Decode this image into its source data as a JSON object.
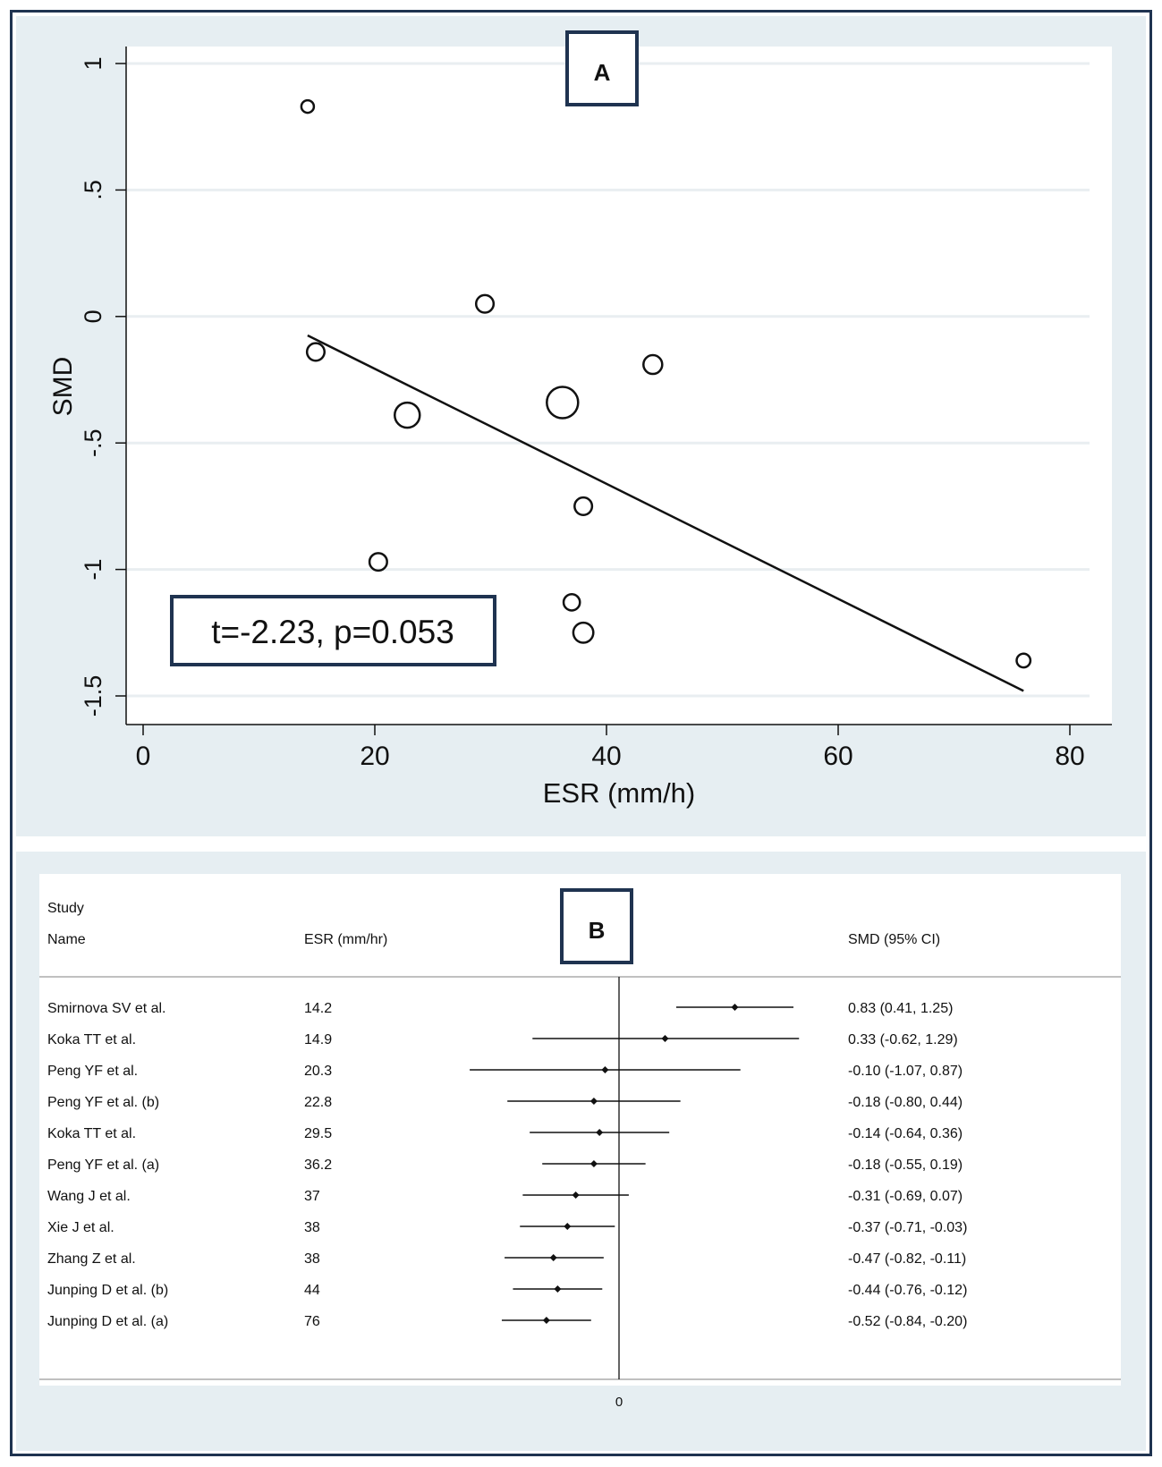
{
  "chart_data": [
    {
      "type": "scatter",
      "panel_label": "A",
      "xlabel": "ESR (mm/h)",
      "ylabel": "SMD",
      "xlim": [
        0,
        80
      ],
      "ylim": [
        -1.5,
        1
      ],
      "xticks": [
        0,
        20,
        40,
        60,
        80
      ],
      "xtick_labels": [
        "0",
        "20",
        "40",
        "60",
        "80"
      ],
      "yticks": [
        1,
        0.5,
        0,
        -0.5,
        -1,
        -1.5
      ],
      "ytick_labels": [
        "1",
        ".5",
        "0",
        "-.5",
        "-1",
        "-1.5"
      ],
      "grid": true,
      "points": [
        {
          "x": 14.2,
          "y": 0.83,
          "weight": 1.0
        },
        {
          "x": 14.9,
          "y": -0.14,
          "weight": 1.4
        },
        {
          "x": 20.3,
          "y": -0.97,
          "weight": 1.4
        },
        {
          "x": 22.8,
          "y": -0.39,
          "weight": 2.0
        },
        {
          "x": 29.5,
          "y": 0.05,
          "weight": 1.4
        },
        {
          "x": 36.2,
          "y": -0.34,
          "weight": 2.5
        },
        {
          "x": 37,
          "y": -1.13,
          "weight": 1.3
        },
        {
          "x": 38,
          "y": -0.75,
          "weight": 1.4
        },
        {
          "x": 38,
          "y": -1.25,
          "weight": 1.6
        },
        {
          "x": 44,
          "y": -0.19,
          "weight": 1.5
        },
        {
          "x": 76,
          "y": -1.36,
          "weight": 1.1
        }
      ],
      "fit_line": {
        "x": [
          14.2,
          76
        ],
        "y": [
          -0.075,
          -1.48
        ]
      },
      "annotation": "t=-2.23, p=0.053"
    },
    {
      "type": "table",
      "subtype": "forest",
      "panel_label": "B",
      "headers": {
        "study_line1": "Study",
        "study_line2": "Name",
        "esr": "ESR (mm/hr)",
        "smd": "SMD (95% CI)"
      },
      "zero_label": "0",
      "xlim": [
        -1.28,
        1.36
      ],
      "rows": [
        {
          "name": "Smirnova SV et al.",
          "esr": "14.2",
          "smd_text": "0.83 (0.41, 1.25)",
          "est": 0.83,
          "lo": 0.41,
          "hi": 1.25
        },
        {
          "name": "Koka TT et al.",
          "esr": "14.9",
          "smd_text": "0.33 (-0.62, 1.29)",
          "est": 0.33,
          "lo": -0.62,
          "hi": 1.29
        },
        {
          "name": "Peng YF et al.",
          "esr": "20.3",
          "smd_text": "-0.10 (-1.07, 0.87)",
          "est": -0.1,
          "lo": -1.07,
          "hi": 0.87
        },
        {
          "name": "Peng YF et al. (b)",
          "esr": "22.8",
          "smd_text": "-0.18 (-0.80, 0.44)",
          "est": -0.18,
          "lo": -0.8,
          "hi": 0.44
        },
        {
          "name": "Koka TT et al.",
          "esr": "29.5",
          "smd_text": "-0.14 (-0.64, 0.36)",
          "est": -0.14,
          "lo": -0.64,
          "hi": 0.36
        },
        {
          "name": "Peng YF et al. (a)",
          "esr": "36.2",
          "smd_text": "-0.18 (-0.55, 0.19)",
          "est": -0.18,
          "lo": -0.55,
          "hi": 0.19
        },
        {
          "name": "Wang J et al.",
          "esr": "37",
          "smd_text": "-0.31 (-0.69, 0.07)",
          "est": -0.31,
          "lo": -0.69,
          "hi": 0.07
        },
        {
          "name": "Xie J et al.",
          "esr": "38",
          "smd_text": "-0.37 (-0.71, -0.03)",
          "est": -0.37,
          "lo": -0.71,
          "hi": -0.03
        },
        {
          "name": "Zhang Z et al.",
          "esr": "38",
          "smd_text": "-0.47 (-0.82, -0.11)",
          "est": -0.47,
          "lo": -0.82,
          "hi": -0.11
        },
        {
          "name": "Junping D et al. (b)",
          "esr": "44",
          "smd_text": "-0.44 (-0.76, -0.12)",
          "est": -0.44,
          "lo": -0.76,
          "hi": -0.12
        },
        {
          "name": "Junping D et al. (a)",
          "esr": "76",
          "smd_text": "-0.52 (-0.84, -0.20)",
          "est": -0.52,
          "lo": -0.84,
          "hi": -0.2
        }
      ]
    }
  ],
  "colors": {
    "panel_bg": "#e6eef2",
    "frame": "#1f3350",
    "grid": "#e9eef1",
    "ink": "#111111"
  }
}
